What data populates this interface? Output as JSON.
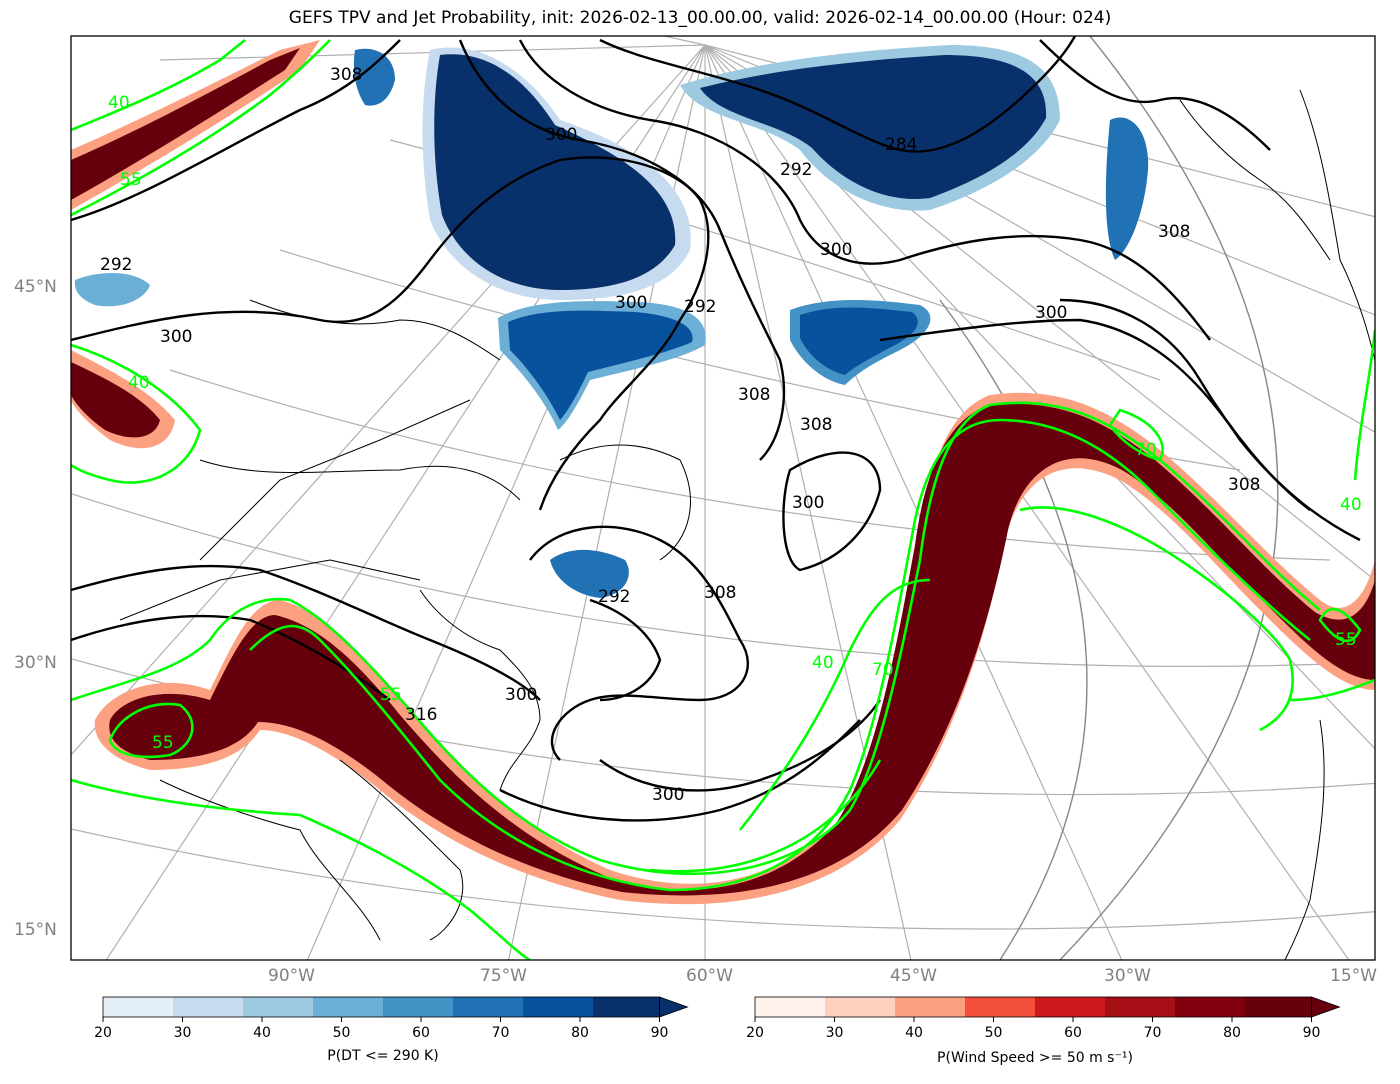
{
  "title": "GEFS TPV and Jet Probability, init: 2026-02-13_00.00.00, valid: 2026-02-14_00.00.00 (Hour: 024)",
  "lat_labels": [
    "45°N",
    "30°N",
    "15°N"
  ],
  "lon_labels": [
    "90°W",
    "75°W",
    "60°W",
    "45°W",
    "30°W",
    "15°W"
  ],
  "theta_contour_labels": [
    "308",
    "300",
    "292",
    "284",
    "292",
    "300",
    "308",
    "300",
    "292",
    "300",
    "308",
    "300",
    "308",
    "300",
    "292",
    "308",
    "300",
    "316",
    "300",
    "308"
  ],
  "wind_contour_labels": [
    "40",
    "55",
    "40",
    "55",
    "40",
    "70",
    "55",
    "55",
    "40",
    "70"
  ],
  "colorbars": {
    "tpv": {
      "label": "P(DT <= 290 K)",
      "ticks": [
        "20",
        "30",
        "40",
        "50",
        "60",
        "70",
        "80",
        "90"
      ],
      "colors": [
        "#e3eef8",
        "#c6dbef",
        "#9ecae1",
        "#6baed6",
        "#4292c6",
        "#2171b5",
        "#08519c",
        "#08306b"
      ]
    },
    "jet": {
      "label": "P(Wind Speed >= 50 m s⁻¹)",
      "ticks": [
        "20",
        "30",
        "40",
        "50",
        "60",
        "70",
        "80",
        "90"
      ],
      "colors": [
        "#fff1ec",
        "#fdd0bf",
        "#fca082",
        "#f44f39",
        "#cb181d",
        "#a50f15",
        "#800010",
        "#67000d"
      ]
    }
  },
  "colors": {
    "jet_contour": "#00ff00",
    "theta_contour": "#000000",
    "grid": "#b0b0b0",
    "coast": "#000000"
  }
}
